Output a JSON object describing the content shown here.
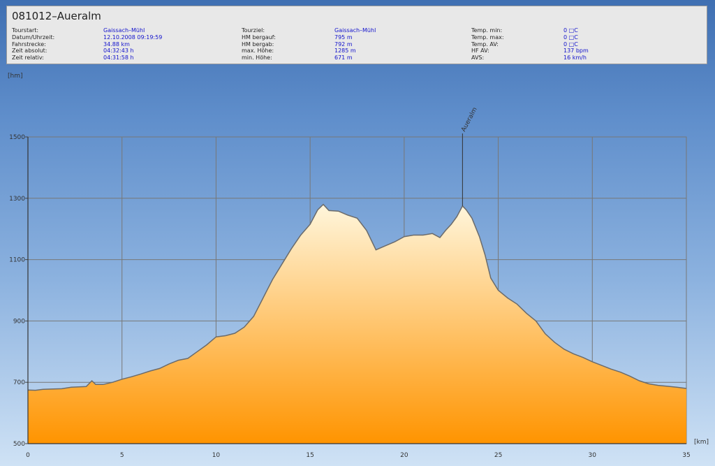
{
  "panel": {
    "title": "081012–Aueralm",
    "columns": [
      [
        {
          "label": "Tourstart:",
          "value": "Gaissach–Mühl"
        },
        {
          "label": "Datum/Uhrzeit:",
          "value": "12.10.2008 09:19:59"
        },
        {
          "label": "Fahrstrecke:",
          "value": "34.88 km"
        },
        {
          "label": "Zeit absolut:",
          "value": "04:32:43 h"
        },
        {
          "label": "Zeit relativ:",
          "value": "04:31:58 h"
        }
      ],
      [
        {
          "label": "Tourziel:",
          "value": "Gaissach–Mühl"
        },
        {
          "label": "HM bergauf:",
          "value": "795 m"
        },
        {
          "label": "HM bergab:",
          "value": "792 m"
        },
        {
          "label": "max. Höhe:",
          "value": "1285 m"
        },
        {
          "label": "min. Höhe:",
          "value": "671 m"
        }
      ],
      [
        {
          "label": "Temp. min:",
          "value": "0 □C"
        },
        {
          "label": "Temp. max:",
          "value": "0 □C"
        },
        {
          "label": "Temp. AV:",
          "value": "0 □C"
        },
        {
          "label": "HF AV:",
          "value": "137 bpm"
        },
        {
          "label": "AVS:",
          "value": "16 km/h"
        }
      ]
    ]
  },
  "chart_data": {
    "type": "area",
    "title": "",
    "xlabel": "[km]",
    "ylabel": "[hm]",
    "xlim": [
      0,
      35
    ],
    "ylim": [
      500,
      1500
    ],
    "xticks": [
      0,
      5,
      10,
      15,
      20,
      25,
      30,
      35
    ],
    "yticks": [
      500,
      700,
      900,
      1100,
      1300,
      1500
    ],
    "grid": true,
    "colors": {
      "fill_top": "#fff6dc",
      "fill_bottom": "#ff9400",
      "line": "#6b6b6b",
      "grid": "#777777"
    },
    "markers": [
      {
        "x": 23.1,
        "label": "Aueralm"
      }
    ],
    "x": [
      0,
      0.4,
      0.8,
      1.2,
      1.8,
      2.3,
      2.7,
      3.1,
      3.4,
      3.6,
      4.0,
      4.5,
      5.0,
      5.5,
      6.0,
      6.5,
      7.0,
      7.5,
      8.0,
      8.5,
      9.0,
      9.5,
      10.0,
      10.5,
      11.0,
      11.5,
      12.0,
      12.5,
      13.0,
      13.5,
      14.0,
      14.5,
      15.0,
      15.4,
      15.7,
      16.0,
      16.5,
      17.0,
      17.5,
      18.0,
      18.5,
      19.0,
      19.5,
      20.0,
      20.5,
      21.0,
      21.5,
      21.9,
      22.2,
      22.5,
      22.8,
      23.1,
      23.3,
      23.6,
      24.0,
      24.3,
      24.6,
      25.0,
      25.5,
      26.0,
      26.5,
      27.0,
      27.5,
      28.0,
      28.5,
      29.0,
      29.5,
      30.0,
      30.5,
      31.0,
      31.5,
      32.0,
      32.5,
      33.0,
      33.5,
      34.0,
      34.5,
      35.0
    ],
    "y": [
      675,
      674,
      677,
      678,
      679,
      684,
      685,
      686,
      705,
      693,
      693,
      700,
      710,
      718,
      727,
      737,
      745,
      760,
      772,
      778,
      800,
      822,
      848,
      852,
      860,
      880,
      915,
      975,
      1035,
      1085,
      1135,
      1180,
      1215,
      1262,
      1280,
      1260,
      1258,
      1245,
      1235,
      1195,
      1132,
      1145,
      1158,
      1175,
      1180,
      1180,
      1185,
      1172,
      1195,
      1215,
      1240,
      1275,
      1262,
      1235,
      1175,
      1115,
      1040,
      1000,
      975,
      955,
      925,
      900,
      858,
      830,
      808,
      793,
      781,
      767,
      755,
      743,
      733,
      720,
      705,
      695,
      690,
      687,
      684,
      680
    ]
  }
}
